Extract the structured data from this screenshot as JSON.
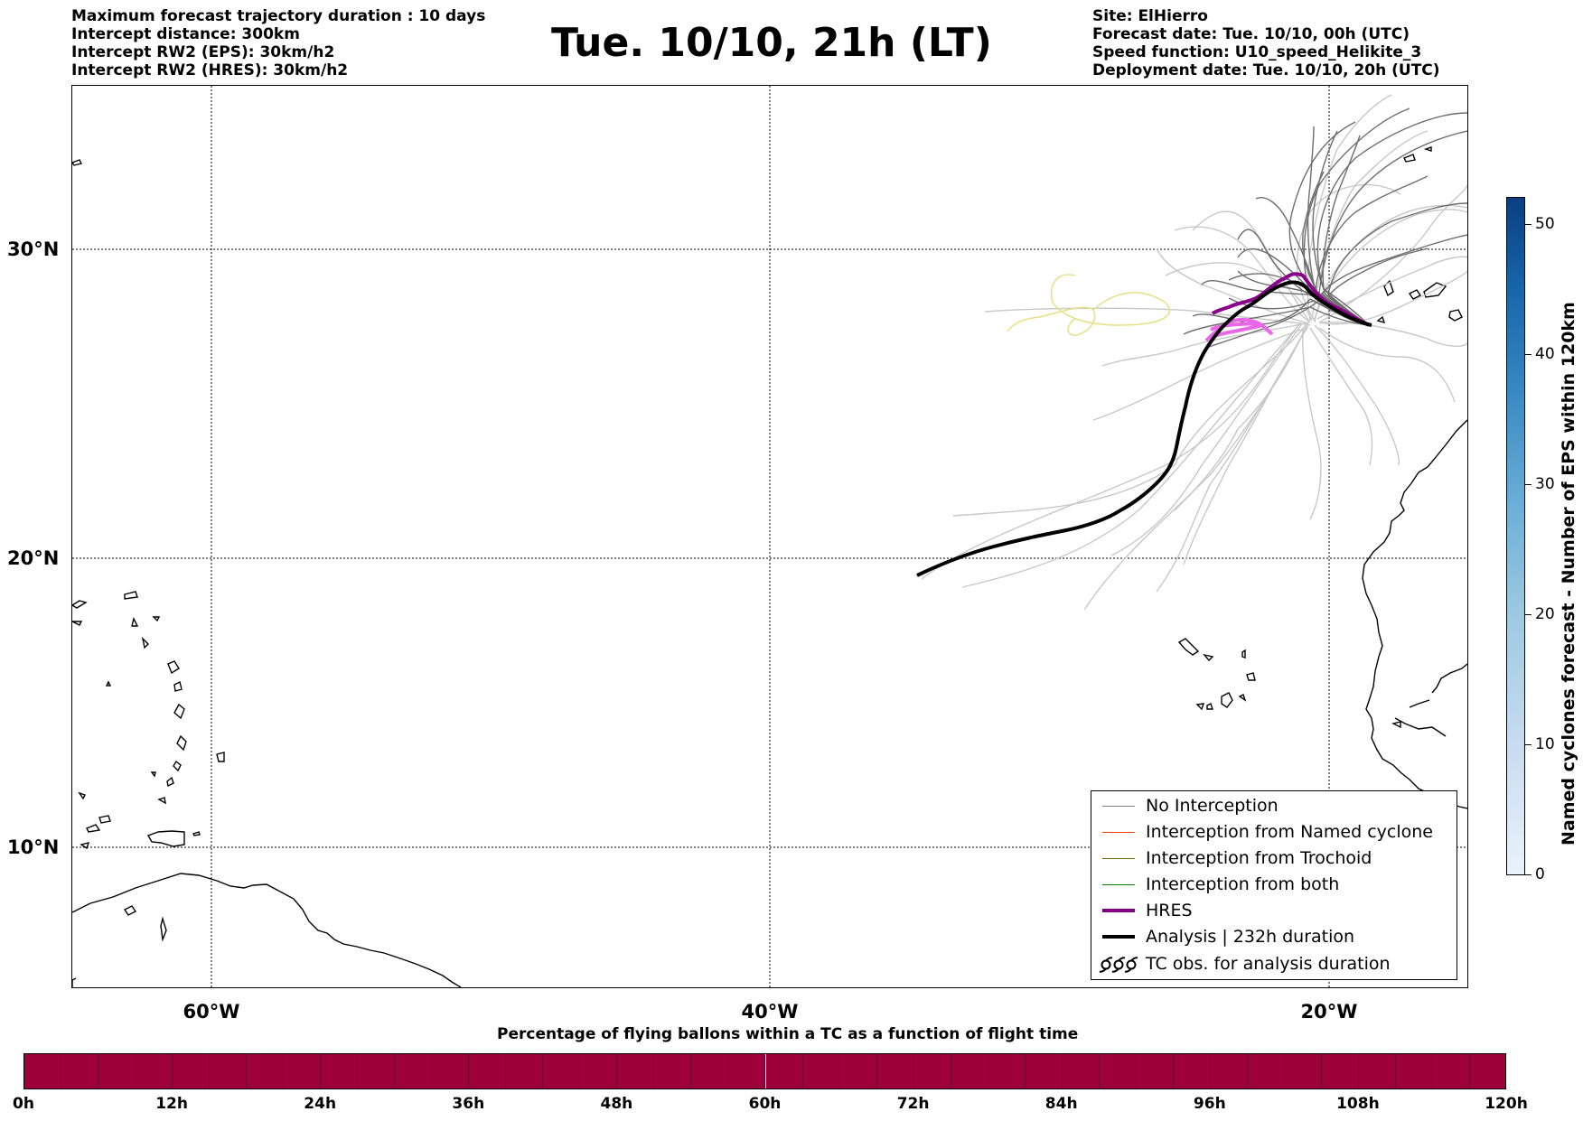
{
  "header": {
    "left_lines": [
      "Maximum forecast trajectory duration : 10 days",
      "Intercept distance: 300km",
      "Intercept RW2 (EPS):  30km/h2",
      "Intercept RW2 (HRES): 30km/h2"
    ],
    "title": "Tue. 10/10, 21h (LT)",
    "right_lines": [
      "Site: ElHierro",
      "Forecast date: Tue. 10/10, 00h (UTC)",
      "Speed function: U10_speed_Helikite_3",
      "Deployment date: Tue. 10/10, 20h (UTC)"
    ]
  },
  "map": {
    "lat_labels": [
      "30°N",
      "20°N",
      "10°N"
    ],
    "lon_labels": [
      "60°W",
      "40°W",
      "20°W"
    ],
    "gridlines": true
  },
  "legend": {
    "items": [
      {
        "label": "No Interception",
        "color": "#7f7f7f",
        "style": "thin"
      },
      {
        "label": "Interception from Named cyclone",
        "color": "#ff4500",
        "style": "thin"
      },
      {
        "label": "Interception from Trochoid",
        "color": "#6b6b00",
        "style": "thin"
      },
      {
        "label": "Interception from both",
        "color": "#007f00",
        "style": "thin"
      },
      {
        "label": "HRES",
        "color": "#800080",
        "style": "thick"
      },
      {
        "label": "Analysis | 232h duration",
        "color": "#000000",
        "style": "thick"
      },
      {
        "label": "TC obs. for analysis duration",
        "color": "#000000",
        "style": "symbol"
      }
    ]
  },
  "colorbar": {
    "title": "Named cyclones forecast - Number of EPS within 120km",
    "ticks": [
      "0",
      "10",
      "20",
      "30",
      "40",
      "50"
    ],
    "range": [
      0,
      52
    ]
  },
  "percentage_bar": {
    "title": "Percentage of flying ballons within a TC as a function of flight time",
    "time_labels": [
      "0h",
      "12h",
      "24h",
      "36h",
      "48h",
      "60h",
      "72h",
      "84h",
      "96h",
      "108h",
      "120h"
    ],
    "color": "#9e003a",
    "segments": 40
  }
}
